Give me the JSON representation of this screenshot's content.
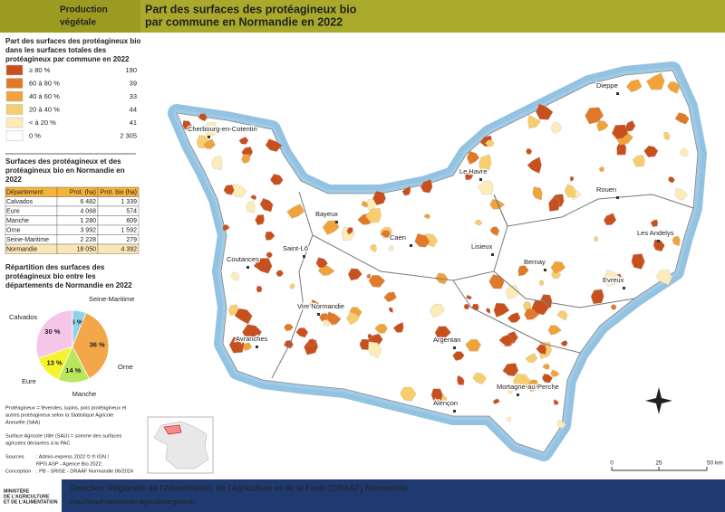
{
  "header": {
    "theme": [
      "Production",
      "végétale"
    ],
    "title": [
      "Part des surfaces des protéagineux bio",
      "par commune en Normandie en 2022"
    ]
  },
  "legend": {
    "title": [
      "Part des surfaces des protéagineux bio",
      "dans les surfaces totales des",
      "protéagineux par commune en 2022"
    ],
    "classes": [
      {
        "label": "≥ 80 %",
        "count": "190",
        "color": "#c8501e"
      },
      {
        "label": "60 à 80 %",
        "count": "39",
        "color": "#e07a28"
      },
      {
        "label": "40 à 60 %",
        "count": "33",
        "color": "#f0a33a"
      },
      {
        "label": "20 à 40 %",
        "count": "44",
        "color": "#f7cd6e"
      },
      {
        "label": "< à 20 %",
        "count": "41",
        "color": "#fbecb8"
      },
      {
        "label": "0 %",
        "count": "2 305",
        "color": "#ffffff"
      }
    ]
  },
  "table": {
    "title": [
      "Surfaces des protéagineux et des",
      "protéagineux bio en Normandie en",
      "2022"
    ],
    "headers": [
      "Département",
      "Prot. (ha)",
      "Prot. bio (ha)"
    ],
    "rows": [
      [
        "Calvados",
        "6 482",
        "1 339"
      ],
      [
        "Eure",
        "4 068",
        "574"
      ],
      [
        "Manche",
        "1 280",
        "609"
      ],
      [
        "Orne",
        "3 992",
        "1 592"
      ],
      [
        "Seine-Maritime",
        "2 228",
        "279"
      ],
      [
        "Normandie",
        "18 050",
        "4 392"
      ]
    ]
  },
  "pie": {
    "title": [
      "Répartition des surfaces des",
      "protéagineux bio entre les",
      "départements de Normandie en 2022"
    ],
    "categories": [
      "Seine-Maritime",
      "Orne",
      "Manche",
      "Eure",
      "Calvados"
    ],
    "values": [
      6,
      36,
      14,
      13,
      30
    ],
    "value_labels": [
      "6 %",
      "36 %",
      "14 %",
      "13 %",
      "30 %"
    ],
    "colors": [
      "#8fd3ea",
      "#f4a64a",
      "#b8e65e",
      "#f7f22e",
      "#f6c6e8"
    ]
  },
  "notes": [
    [
      "Protéagineux = féveroles, lupins, pois protéagineux et",
      "autres protéagineux selon la Statistique Agricole",
      "Annuelle (SAA)"
    ],
    [
      "Surface Agricole Utile (SAU) = somme des surfaces",
      "agricoles déclarées à la PAC"
    ]
  ],
  "sources": [
    [
      "Sources",
      ": Admin-express 2022 © ® IGN /"
    ],
    [
      "",
      "RPG ASP - Agence Bio 2022"
    ],
    [
      "Conception",
      ": PB - SRISE - DRAAF Normandie 06/2024"
    ]
  ],
  "map": {
    "cities": [
      "Cherbourg-en-Cotentin",
      "Dieppe",
      "Le Havre",
      "Rouen",
      "Bayeux",
      "Caen",
      "Saint-Lô",
      "Lisieux",
      "Coutances",
      "Bernay",
      "Les Andelys",
      "Evreux",
      "Vire Normandie",
      "Avranches",
      "Argentan",
      "Alençon",
      "Mortagne-au-Perche"
    ],
    "scale": [
      "0",
      "25",
      "50 km"
    ]
  },
  "footer": {
    "ministry": [
      "MINISTÈRE",
      "DE L'AGRICULTURE",
      "ET DE L'ALIMENTATION"
    ],
    "org": "Direction Régionale de l'Alimentation, de l'Agriculture et de la Forêt (DRAAF) Normandie",
    "url": "http://draaf.normandie.agriculture.gouv.fr/"
  }
}
